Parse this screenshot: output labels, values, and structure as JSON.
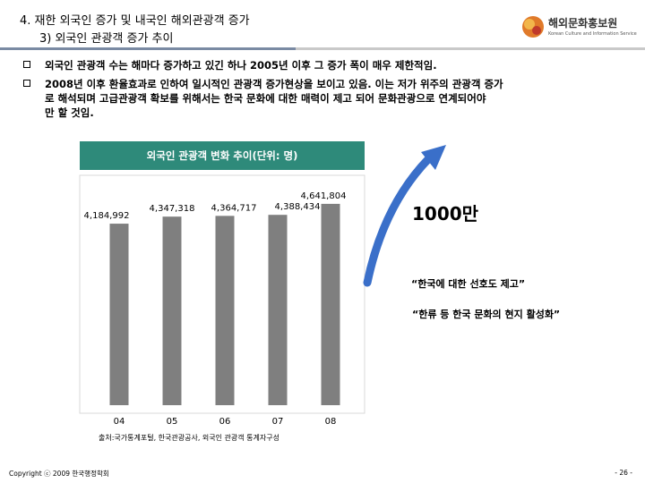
{
  "header": {
    "title_line1": "4. 재한 외국인 증가 및 내국인 해외관광객 증가",
    "title_line2": "3) 외국인 관광객 증가 추이",
    "logo_text": "해외문화홍보원",
    "logo_subtext": "Korean Culture and Information Service"
  },
  "bullets": [
    {
      "lines": [
        "외국인 관광객 수는 해마다 증가하고 있긴 하나 2005년 이후 그 증가 폭이 매우 제한적임."
      ]
    },
    {
      "lines": [
        "2008년 이후 환율효과로 인하여 일시적인 관광객 증가현상을 보이고 있음. 이는 저가 위주의 관광객 증가",
        "로 해석되며 고급관광객 확보를 위해서는 한국 문화에 대한 매력이 제고 되어 문화관광으로 연계되어야",
        "만 할 것임."
      ]
    }
  ],
  "chart_data": {
    "type": "bar",
    "title": "외국인 관광객 변화 추이(단위: 명)",
    "categories": [
      "04",
      "05",
      "06",
      "07",
      "08"
    ],
    "values": [
      4184992,
      4347318,
      4364717,
      4388434,
      4641804
    ],
    "value_labels": [
      "4,184,992",
      "4,347,318",
      "4,364,717",
      "4,388,434",
      "4,641,804"
    ],
    "ylim": [
      0,
      5300000
    ],
    "grid": false,
    "legend": "none",
    "bar_color": "#7f7f7f"
  },
  "annotations": {
    "target": "1000만",
    "quote1": "“한국에 대한 선호도 제고”",
    "quote2": "“한류 등 한국 문화의 현지 활성화”"
  },
  "footer": {
    "source": "출처:국가통계포털, 한국관광공사, 외국인 관광객 통계자구성",
    "copyright": "Copyright ⓒ 2009 한국행정학회",
    "page": "- 26 -"
  },
  "colors": {
    "header_bg": "#2e8a7a",
    "arrow": "#3a6fc9"
  }
}
